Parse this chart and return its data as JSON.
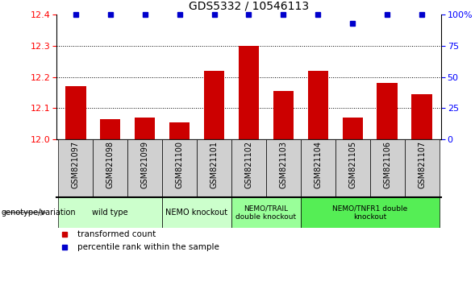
{
  "title": "GDS5332 / 10546113",
  "samples": [
    "GSM821097",
    "GSM821098",
    "GSM821099",
    "GSM821100",
    "GSM821101",
    "GSM821102",
    "GSM821103",
    "GSM821104",
    "GSM821105",
    "GSM821106",
    "GSM821107"
  ],
  "bar_values": [
    12.17,
    12.065,
    12.07,
    12.055,
    12.22,
    12.3,
    12.155,
    12.22,
    12.07,
    12.18,
    12.145
  ],
  "percentile_values": [
    100,
    100,
    100,
    100,
    100,
    100,
    100,
    100,
    93,
    100,
    100
  ],
  "bar_color": "#cc0000",
  "percentile_color": "#0000cc",
  "ymin": 12.0,
  "ymax": 12.4,
  "yticks": [
    12.0,
    12.1,
    12.2,
    12.3,
    12.4
  ],
  "y2min": 0,
  "y2max": 100,
  "y2ticks": [
    0,
    25,
    50,
    75,
    100
  ],
  "y2ticklabels": [
    "0",
    "25",
    "50",
    "75",
    "100%"
  ],
  "groups_info": [
    {
      "label": "wild type",
      "cols": [
        0,
        1,
        2
      ],
      "color": "#ccffcc"
    },
    {
      "label": "NEMO knockout",
      "cols": [
        3,
        4
      ],
      "color": "#ccffcc"
    },
    {
      "label": "NEMO/TRAIL\ndouble knockout",
      "cols": [
        5,
        6
      ],
      "color": "#99ff99"
    },
    {
      "label": "NEMO/TNFR1 double\nknockout",
      "cols": [
        7,
        8,
        9,
        10
      ],
      "color": "#55ee55"
    }
  ],
  "legend_red_label": "transformed count",
  "legend_blue_label": "percentile rank within the sample",
  "genotype_label": "genotype/variation",
  "label_bg_color": "#d0d0d0",
  "title_fontsize": 10,
  "bar_fontsize": 7,
  "group_fontsize": 7,
  "legend_fontsize": 7.5,
  "ytick_fontsize": 8,
  "y2tick_fontsize": 8
}
